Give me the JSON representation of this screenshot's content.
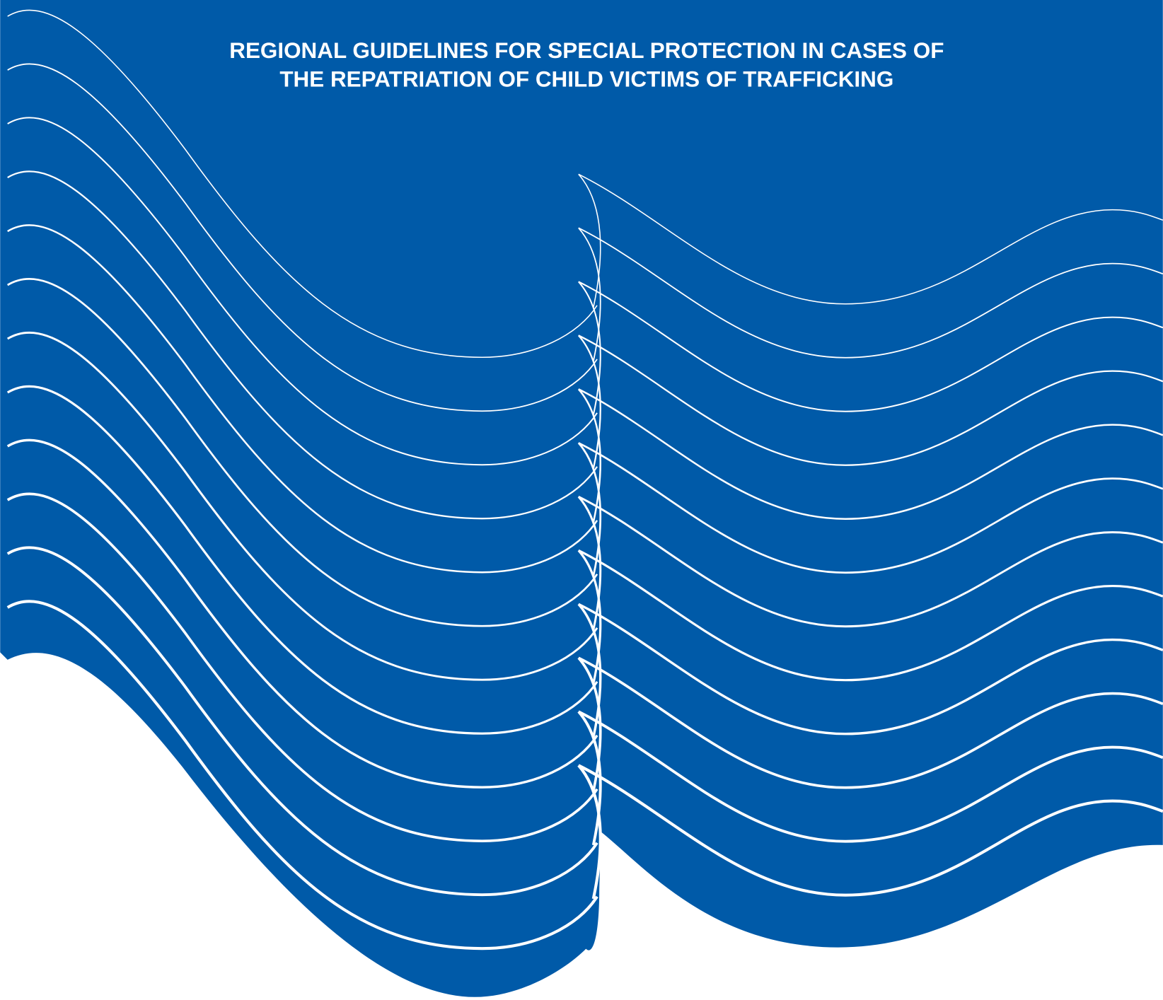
{
  "cover": {
    "title": [
      "REGIONAL GUIDELINES FOR SPECIAL PROTECTION IN CASES OF",
      "THE REPATRIATION OF CHILD VICTIMS OF TRAFFICKING"
    ]
  }
}
